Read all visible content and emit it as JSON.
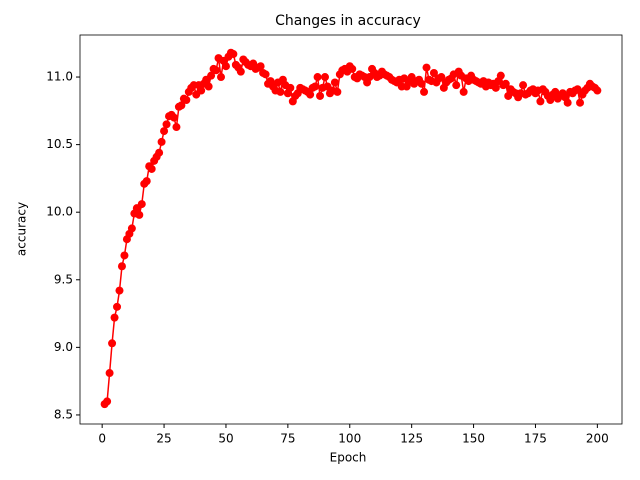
{
  "chart_data": {
    "type": "line",
    "title": "Changes in accuracy",
    "x_label": "Epoch",
    "y_label": "accuracy",
    "x": [
      1,
      2,
      3,
      4,
      5,
      6,
      7,
      8,
      9,
      10,
      11,
      12,
      13,
      14,
      15,
      16,
      17,
      18,
      19,
      20,
      21,
      22,
      23,
      24,
      25,
      26,
      27,
      28,
      29,
      30,
      31,
      32,
      33,
      34,
      35,
      36,
      37,
      38,
      39,
      40,
      41,
      42,
      43,
      44,
      45,
      46,
      47,
      48,
      49,
      50,
      51,
      52,
      53,
      54,
      55,
      56,
      57,
      58,
      59,
      60,
      61,
      62,
      63,
      64,
      65,
      66,
      67,
      68,
      69,
      70,
      71,
      72,
      73,
      74,
      75,
      76,
      77,
      78,
      79,
      80,
      81,
      82,
      83,
      84,
      85,
      86,
      87,
      88,
      89,
      90,
      91,
      92,
      93,
      94,
      95,
      96,
      97,
      98,
      99,
      100,
      101,
      102,
      103,
      104,
      105,
      106,
      107,
      108,
      109,
      110,
      111,
      112,
      113,
      114,
      115,
      116,
      117,
      118,
      119,
      120,
      121,
      122,
      123,
      124,
      125,
      126,
      127,
      128,
      129,
      130,
      131,
      132,
      133,
      134,
      135,
      136,
      137,
      138,
      139,
      140,
      141,
      142,
      143,
      144,
      145,
      146,
      147,
      148,
      149,
      150,
      151,
      152,
      153,
      154,
      155,
      156,
      157,
      158,
      159,
      160,
      161,
      162,
      163,
      164,
      165,
      166,
      167,
      168,
      169,
      170,
      171,
      172,
      173,
      174,
      175,
      176,
      177,
      178,
      179,
      180,
      181,
      182,
      183,
      184,
      185,
      186,
      187,
      188,
      189,
      190,
      191,
      192,
      193,
      194,
      195,
      196,
      197,
      198,
      199,
      200
    ],
    "series": [
      {
        "color": "#ff0000",
        "values": [
          8.58,
          8.6,
          8.81,
          9.03,
          9.22,
          9.3,
          9.42,
          9.6,
          9.68,
          9.8,
          9.84,
          9.88,
          9.99,
          10.03,
          9.98,
          10.06,
          10.21,
          10.23,
          10.34,
          10.32,
          10.38,
          10.41,
          10.44,
          10.52,
          10.6,
          10.65,
          10.71,
          10.72,
          10.7,
          10.63,
          10.78,
          10.79,
          10.84,
          10.83,
          10.89,
          10.92,
          10.94,
          10.87,
          10.94,
          10.9,
          10.95,
          10.98,
          10.93,
          11.01,
          11.06,
          11.05,
          11.14,
          11.0,
          11.12,
          11.08,
          11.15,
          11.18,
          11.17,
          11.09,
          11.07,
          11.04,
          11.13,
          11.11,
          11.09,
          11.08,
          11.1,
          11.06,
          11.07,
          11.08,
          11.03,
          11.02,
          10.95,
          10.97,
          10.93,
          10.9,
          10.96,
          10.89,
          10.98,
          10.94,
          10.88,
          10.92,
          10.82,
          10.86,
          10.88,
          10.92,
          10.91,
          10.9,
          10.89,
          10.87,
          10.92,
          10.93,
          11.0,
          10.86,
          10.92,
          11.0,
          10.93,
          10.88,
          10.9,
          10.96,
          10.89,
          11.02,
          11.05,
          11.06,
          11.04,
          11.08,
          11.06,
          11.0,
          10.99,
          11.02,
          11.01,
          11.0,
          10.96,
          11.0,
          11.06,
          11.03,
          11.0,
          11.01,
          11.04,
          11.02,
          11.01,
          11.0,
          10.98,
          10.97,
          10.96,
          10.98,
          10.93,
          10.99,
          10.93,
          10.97,
          11.0,
          10.95,
          10.97,
          10.98,
          10.95,
          10.89,
          11.07,
          10.98,
          10.97,
          11.03,
          10.96,
          10.99,
          11.0,
          10.92,
          10.96,
          10.98,
          10.99,
          11.02,
          10.94,
          11.04,
          11.01,
          10.89,
          10.99,
          10.97,
          11.01,
          10.98,
          10.97,
          10.96,
          10.95,
          10.97,
          10.93,
          10.96,
          10.94,
          10.95,
          10.92,
          10.97,
          11.01,
          10.94,
          10.95,
          10.86,
          10.91,
          10.89,
          10.88,
          10.85,
          10.88,
          10.94,
          10.87,
          10.88,
          10.9,
          10.91,
          10.88,
          10.9,
          10.82,
          10.91,
          10.89,
          10.86,
          10.83,
          10.87,
          10.89,
          10.84,
          10.86,
          10.88,
          10.85,
          10.81,
          10.89,
          10.88,
          10.9,
          10.91,
          10.81,
          10.87,
          10.9,
          10.92,
          10.95,
          10.93,
          10.92,
          10.9
        ]
      }
    ],
    "xlim": [
      -8.95,
      209.95
    ],
    "ylim": [
      8.433,
      11.311
    ],
    "xticks": [
      0,
      25,
      50,
      75,
      100,
      125,
      150,
      175,
      200
    ],
    "yticks": [
      8.5,
      {
        "value": 9,
        "label": "9.0"
      },
      9.5,
      {
        "value": 10,
        "label": "10.0"
      },
      10.5,
      {
        "value": 11,
        "label": "11.0"
      }
    ]
  }
}
